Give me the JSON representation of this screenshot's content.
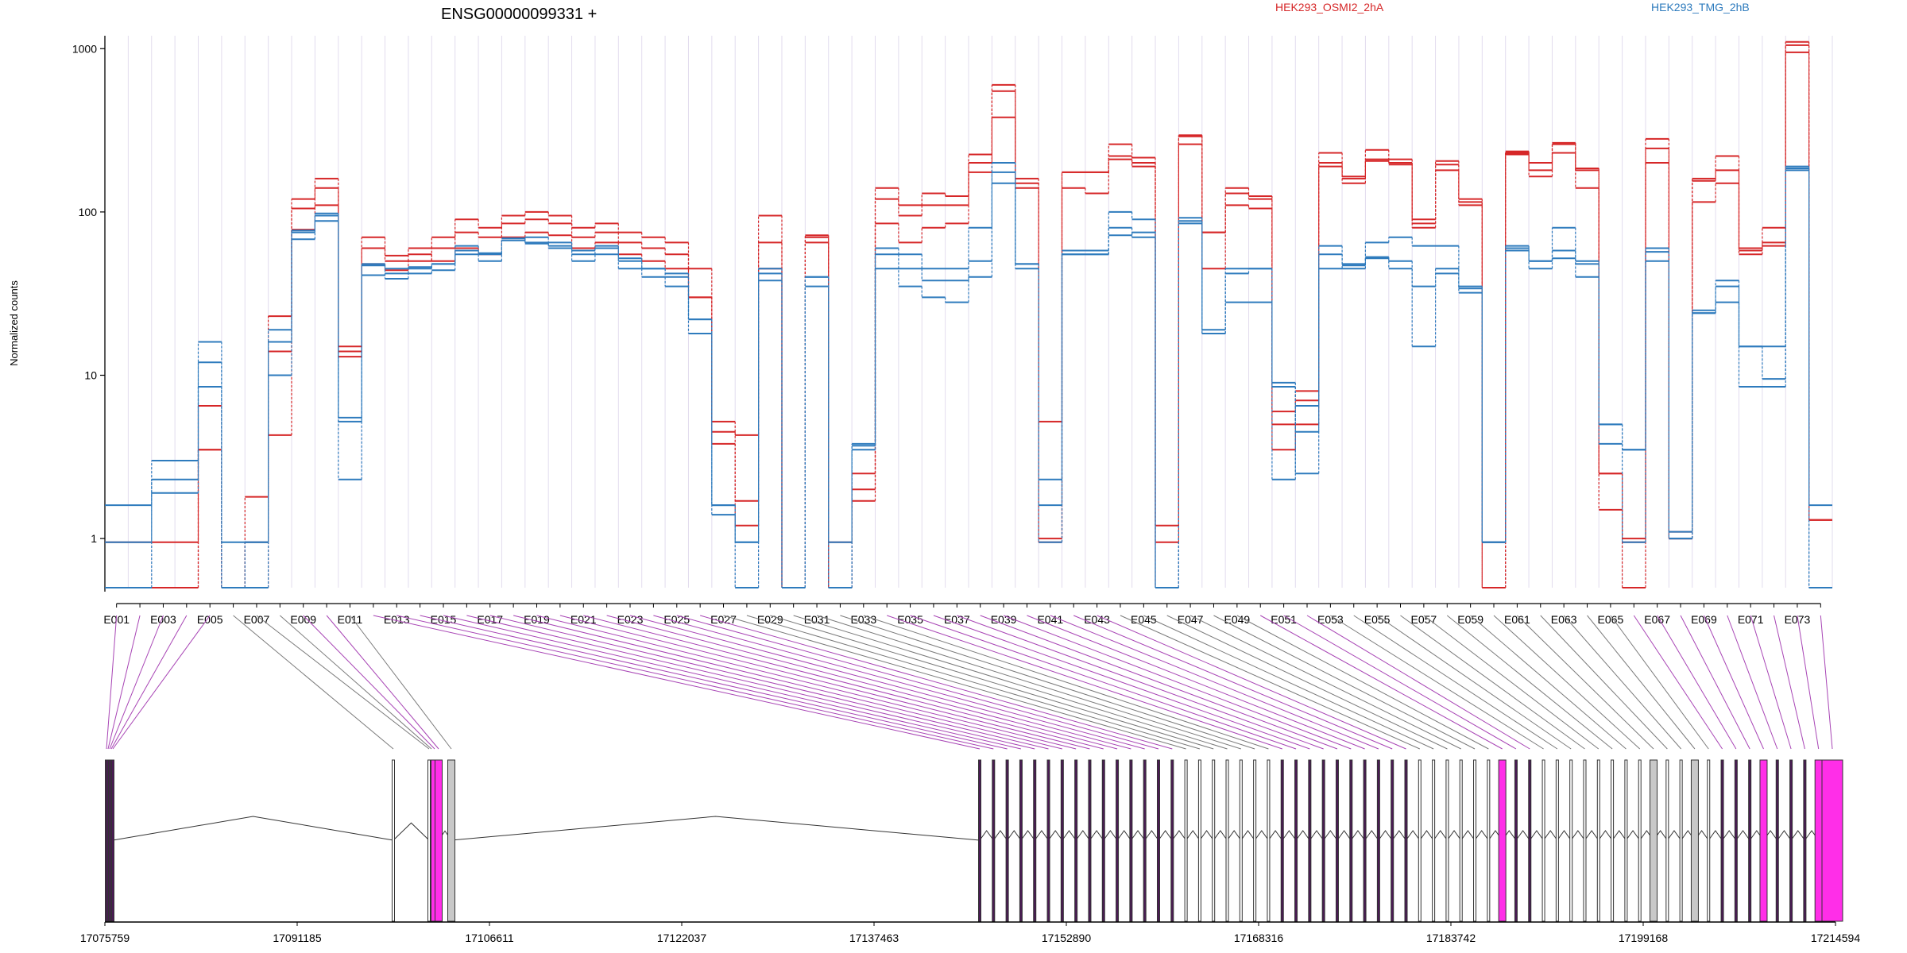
{
  "chart_data": {
    "type": "line",
    "title": "ENSG00000099331 +",
    "ylabel": "Normalized counts",
    "yscale": "log",
    "ylim": [
      0.5,
      1200
    ],
    "yticks": [
      "1000",
      "100",
      "10",
      "1"
    ],
    "legend": [
      {
        "name": "HEK293_OSMI2_2hA",
        "color": "#d62728"
      },
      {
        "name": "HEK293_TMG_2hB",
        "color": "#2e7bbd"
      }
    ],
    "exons": [
      "E001",
      "E002",
      "E003",
      "E004",
      "E005",
      "E006",
      "E007",
      "E008",
      "E009",
      "E010",
      "E011",
      "E012",
      "E013",
      "E014",
      "E015",
      "E016",
      "E017",
      "E018",
      "E019",
      "E020",
      "E021",
      "E022",
      "E023",
      "E024",
      "E025",
      "E026",
      "E027",
      "E028",
      "E029",
      "E030",
      "E031",
      "E032",
      "E033",
      "E034",
      "E035",
      "E036",
      "E037",
      "E038",
      "E039",
      "E040",
      "E041",
      "E042",
      "E043",
      "E044",
      "E045",
      "E046",
      "E047",
      "E048",
      "E049",
      "E050",
      "E051",
      "E052",
      "E053",
      "E054",
      "E055",
      "E056",
      "E057",
      "E058",
      "E059",
      "E060",
      "E061",
      "E062",
      "E063",
      "E064",
      "E065",
      "E066",
      "E067",
      "E068",
      "E069",
      "E070",
      "E071",
      "E072",
      "E073",
      "E074"
    ],
    "x_tick_labels": [
      "E001",
      "E003",
      "E005",
      "E007",
      "E009",
      "E011",
      "E013",
      "E015",
      "E017",
      "E019",
      "E021",
      "E023",
      "E025",
      "E027",
      "E029",
      "E031",
      "E033",
      "E035",
      "E037",
      "E039",
      "E041",
      "E043",
      "E045",
      "E047",
      "E049",
      "E051",
      "E053",
      "E055",
      "E057",
      "E059",
      "E061",
      "E063",
      "E065",
      "E067",
      "E069",
      "E071",
      "E073"
    ],
    "series": [
      {
        "name": "HEK293_OSMI2_2hA",
        "replicate": 1,
        "values": [
          0.5,
          0.5,
          0.5,
          0.5,
          3.5,
          0.5,
          0.5,
          4.3,
          105,
          140,
          13,
          60,
          54,
          60,
          70,
          90,
          80,
          95,
          100,
          95,
          80,
          85,
          75,
          70,
          65,
          45,
          4.5,
          1.2,
          65,
          0.5,
          65,
          0.5,
          1.7,
          85,
          65,
          80,
          85,
          200,
          550,
          140,
          1.0,
          140,
          130,
          210,
          190,
          0.5,
          260,
          75,
          130,
          120,
          5,
          8,
          190,
          150,
          210,
          200,
          85,
          180,
          120,
          0.5,
          230,
          165,
          230,
          140,
          2.5,
          1.0,
          200,
          1.1,
          115,
          150,
          55,
          62,
          950,
          1.3
        ]
      },
      {
        "name": "HEK293_OSMI2_2hA",
        "replicate": 2,
        "values": [
          0.95,
          0.95,
          0.95,
          0.95,
          6.5,
          0.5,
          0.95,
          14,
          120,
          160,
          14,
          48,
          44,
          50,
          60,
          75,
          70,
          85,
          90,
          85,
          70,
          75,
          65,
          60,
          55,
          30,
          3.8,
          1.7,
          95,
          0.5,
          70,
          0.95,
          2.0,
          120,
          95,
          110,
          110,
          225,
          600,
          150,
          0.95,
          175,
          175,
          260,
          215,
          0.95,
          295,
          45,
          110,
          105,
          3.5,
          5,
          230,
          165,
          240,
          210,
          80,
          205,
          115,
          0.95,
          225,
          180,
          260,
          180,
          2.5,
          0.95,
          280,
          1.0,
          160,
          220,
          58,
          80,
          1050,
          1.3
        ]
      },
      {
        "name": "HEK293_OSMI2_2hA",
        "replicate": 3,
        "values": [
          0.5,
          0.5,
          0.5,
          0.5,
          3.5,
          0.5,
          1.8,
          23,
          78,
          110,
          15,
          70,
          50,
          55,
          50,
          60,
          55,
          70,
          75,
          72,
          60,
          65,
          55,
          50,
          45,
          30,
          5.2,
          4.3,
          45,
          0.5,
          72,
          0.5,
          2.5,
          140,
          110,
          130,
          125,
          175,
          380,
          160,
          5.2,
          175,
          175,
          220,
          200,
          1.2,
          290,
          75,
          140,
          125,
          6,
          7,
          200,
          160,
          205,
          195,
          90,
          195,
          110,
          0.5,
          235,
          200,
          265,
          185,
          1.5,
          0.5,
          245,
          1.0,
          155,
          180,
          60,
          65,
          1100,
          1.3
        ]
      },
      {
        "name": "HEK293_TMG_2hB",
        "replicate": 1,
        "values": [
          0.95,
          0.95,
          1.9,
          1.9,
          16,
          0.95,
          0.95,
          16,
          68,
          88,
          5.2,
          41,
          42,
          45,
          48,
          55,
          50,
          67,
          70,
          65,
          50,
          55,
          45,
          40,
          35,
          22,
          1.6,
          0.95,
          42,
          0.5,
          35,
          0.95,
          3.5,
          45,
          45,
          38,
          38,
          50,
          175,
          45,
          0.95,
          55,
          55,
          72,
          75,
          0.5,
          92,
          19,
          42,
          45,
          9,
          2.5,
          45,
          47,
          52,
          50,
          35,
          42,
          35,
          0.95,
          58,
          50,
          58,
          40,
          5,
          3.5,
          57,
          1.1,
          25,
          35,
          15,
          15,
          190,
          0.5
        ]
      },
      {
        "name": "HEK293_TMG_2hB",
        "replicate": 2,
        "values": [
          0.5,
          0.5,
          2.3,
          2.3,
          12,
          0.5,
          0.95,
          10,
          77,
          98,
          2.3,
          47,
          39,
          42,
          44,
          58,
          55,
          69,
          65,
          62,
          55,
          60,
          50,
          45,
          40,
          18,
          1.4,
          0.95,
          38,
          0.5,
          40,
          0.5,
          3.7,
          55,
          35,
          30,
          28,
          40,
          150,
          48,
          2.3,
          55,
          55,
          80,
          70,
          0.5,
          85,
          18,
          28,
          28,
          2.3,
          6.5,
          55,
          45,
          53,
          45,
          15,
          45,
          32,
          0.95,
          62,
          45,
          52,
          48,
          3.8,
          0.95,
          50,
          1.0,
          24,
          28,
          8.5,
          8.5,
          180,
          0.5
        ]
      },
      {
        "name": "HEK293_TMG_2hB",
        "replicate": 3,
        "values": [
          1.6,
          1.6,
          3.0,
          3.0,
          8.5,
          0.5,
          0.5,
          19,
          75,
          95,
          5.5,
          48,
          45,
          46,
          48,
          62,
          56,
          67,
          64,
          60,
          58,
          62,
          52,
          45,
          42,
          22,
          1.6,
          0.5,
          45,
          0.5,
          40,
          0.5,
          3.8,
          60,
          55,
          45,
          45,
          80,
          200,
          48,
          1.6,
          58,
          58,
          100,
          90,
          0.5,
          88,
          18,
          45,
          45,
          8.5,
          4.5,
          62,
          48,
          65,
          70,
          62,
          62,
          34,
          0.95,
          60,
          50,
          80,
          50,
          5.0,
          3.5,
          60,
          1.0,
          24,
          38,
          15,
          9.5,
          185,
          1.6
        ]
      }
    ],
    "genomic_ticks": [
      "17075759",
      "17091185",
      "17106611",
      "17122037",
      "17137463",
      "17152890",
      "17168316",
      "17183742",
      "17199168",
      "17214594"
    ],
    "genomic_range": [
      17075759,
      17214594
    ],
    "exon_fills": [
      "transcribed",
      "transcribed",
      "transcribed",
      "transcribed",
      "transcribed",
      "none",
      "none",
      "none",
      "magenta",
      "magenta",
      "gray",
      "transcribed",
      "transcribed",
      "transcribed",
      "transcribed",
      "transcribed",
      "transcribed",
      "transcribed",
      "transcribed",
      "transcribed",
      "transcribed",
      "transcribed",
      "transcribed",
      "transcribed",
      "transcribed",
      "transcribed",
      "none",
      "none",
      "none",
      "none",
      "none",
      "none",
      "none",
      "transcribed",
      "transcribed",
      "transcribed",
      "transcribed",
      "transcribed",
      "transcribed",
      "transcribed",
      "transcribed",
      "transcribed",
      "transcribed",
      "none",
      "none",
      "none",
      "none",
      "none",
      "none",
      "magenta",
      "transcribed",
      "transcribed",
      "none",
      "none",
      "none",
      "none",
      "none",
      "none",
      "none",
      "none",
      "gray",
      "none",
      "none",
      "gray",
      "none",
      "transcribed",
      "transcribed",
      "transcribed",
      "magenta",
      "transcribed",
      "transcribed",
      "transcribed",
      "magenta",
      "magenta"
    ],
    "colors": {
      "magenta": "#ff2ee8",
      "significant_link": "#a845b5",
      "gray_link": "#7a7a7a",
      "gray_exon": "#c8c8c8"
    }
  }
}
